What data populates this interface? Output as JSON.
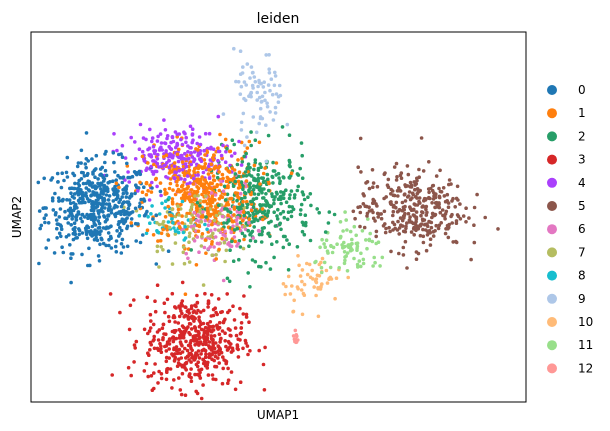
{
  "chart_data": {
    "type": "scatter",
    "title": "leiden",
    "xlabel": "UMAP1",
    "ylabel": "UMAP2",
    "xlim": [
      -8,
      12
    ],
    "ylim": [
      -6,
      8
    ],
    "grid": false,
    "ticks": false,
    "legend_position": "right",
    "clusters": [
      {
        "name": "0",
        "color": "#1f77b4",
        "center": [
          -5.3,
          1.4
        ],
        "spread": [
          1.05,
          0.85
        ],
        "n": 520
      },
      {
        "name": "1",
        "color": "#ff7f0e",
        "center": [
          -1.1,
          1.9
        ],
        "spread": [
          1.15,
          0.95
        ],
        "n": 480
      },
      {
        "name": "2",
        "color": "#279e68",
        "center": [
          1.3,
          1.5
        ],
        "spread": [
          1.0,
          1.0
        ],
        "n": 360
      },
      {
        "name": "3",
        "color": "#d62728",
        "center": [
          -1.4,
          -3.7
        ],
        "spread": [
          1.0,
          0.85
        ],
        "n": 480
      },
      {
        "name": "4",
        "color": "#aa40fc",
        "center": [
          -2.1,
          3.3
        ],
        "spread": [
          1.05,
          0.55
        ],
        "n": 240
      },
      {
        "name": "5",
        "color": "#8c564b",
        "center": [
          7.4,
          1.3
        ],
        "spread": [
          1.05,
          0.75
        ],
        "n": 340
      },
      {
        "name": "6",
        "color": "#e377c2",
        "center": [
          -0.3,
          0.9
        ],
        "spread": [
          0.9,
          0.75
        ],
        "n": 110
      },
      {
        "name": "7",
        "color": "#b5bd61",
        "center": [
          -1.6,
          0.7
        ],
        "spread": [
          0.9,
          0.75
        ],
        "n": 90
      },
      {
        "name": "8",
        "color": "#17becf",
        "center": [
          -2.3,
          0.8
        ],
        "spread": [
          0.55,
          0.45
        ],
        "n": 40
      },
      {
        "name": "9",
        "color": "#aec7e8",
        "center": [
          1.2,
          5.6
        ],
        "spread": [
          0.5,
          0.8
        ],
        "n": 80
      },
      {
        "name": "10",
        "color": "#ffbb78",
        "center": [
          3.4,
          -1.4
        ],
        "spread": [
          0.6,
          0.5
        ],
        "n": 55
      },
      {
        "name": "11",
        "color": "#98df8a",
        "center": [
          5.0,
          -0.3
        ],
        "spread": [
          0.75,
          0.45
        ],
        "n": 80
      },
      {
        "name": "12",
        "color": "#ff9896",
        "center": [
          2.7,
          -3.6
        ],
        "spread": [
          0.05,
          0.12
        ],
        "n": 10
      }
    ]
  }
}
